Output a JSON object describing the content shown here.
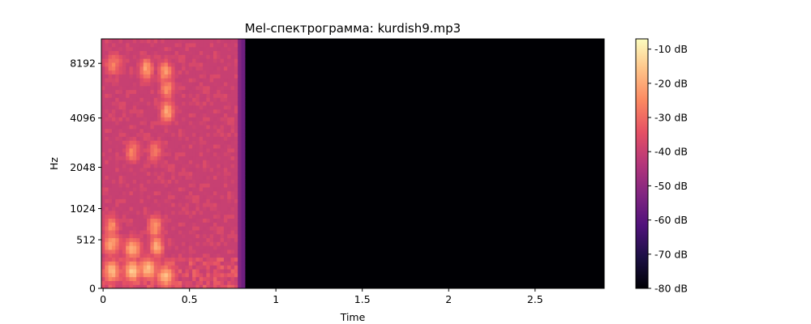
{
  "chart_data": {
    "type": "heatmap",
    "title": "Mel-спектрограмма: kurdish9.mp3",
    "xlabel": "Time",
    "ylabel": "Hz",
    "x_ticks": [
      {
        "value": 0,
        "label": "0"
      },
      {
        "value": 0.5,
        "label": "0.5"
      },
      {
        "value": 1,
        "label": "1"
      },
      {
        "value": 1.5,
        "label": "1.5"
      },
      {
        "value": 2,
        "label": "2"
      },
      {
        "value": 2.5,
        "label": "2.5"
      }
    ],
    "xlim": [
      -0.01,
      2.9
    ],
    "y_ticks": [
      {
        "value": 0,
        "label": "0"
      },
      {
        "value": 512,
        "label": "512"
      },
      {
        "value": 1024,
        "label": "1024"
      },
      {
        "value": 2048,
        "label": "2048"
      },
      {
        "value": 4096,
        "label": "4096"
      },
      {
        "value": 8192,
        "label": "8192"
      }
    ],
    "y_scale": "mel",
    "ylim_hz": [
      0,
      11025
    ],
    "audio_end_time": 0.82,
    "colormap": "magma",
    "colorbar": {
      "range_db": [
        -80,
        -7
      ],
      "ticks": [
        {
          "value": -10,
          "label": "-10 dB"
        },
        {
          "value": -20,
          "label": "-20 dB"
        },
        {
          "value": -30,
          "label": "-30 dB"
        },
        {
          "value": -40,
          "label": "-40 dB"
        },
        {
          "value": -50,
          "label": "-50 dB"
        },
        {
          "value": -60,
          "label": "-60 dB"
        },
        {
          "value": -70,
          "label": "-70 dB"
        },
        {
          "value": -80,
          "label": "-80 dB"
        }
      ]
    },
    "silence_db": -80,
    "grid": false
  }
}
